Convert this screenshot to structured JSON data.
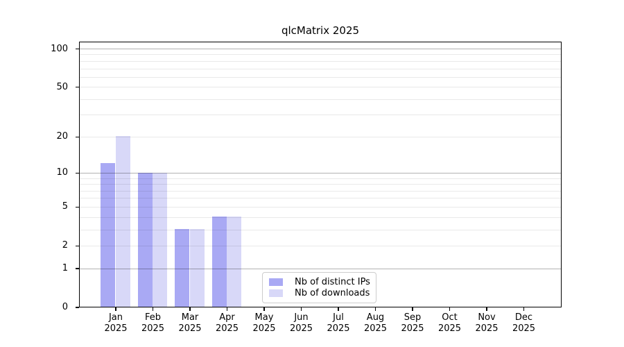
{
  "title": "qlcMatrix 2025",
  "chart_data": {
    "type": "bar",
    "title": "qlcMatrix 2025",
    "categories": [
      "Jan",
      "Feb",
      "Mar",
      "Apr",
      "May",
      "Jun",
      "Jul",
      "Aug",
      "Sep",
      "Oct",
      "Nov",
      "Dec"
    ],
    "category_year": "2025",
    "series": [
      {
        "name": "Nb of distinct IPs",
        "color": "#a9a9f4",
        "values": [
          12,
          10,
          3,
          4,
          0,
          0,
          0,
          0,
          0,
          0,
          0,
          0
        ]
      },
      {
        "name": "Nb of downloads",
        "color": "#d8d8f8",
        "values": [
          20,
          10,
          3,
          4,
          0,
          0,
          0,
          0,
          0,
          0,
          0,
          0
        ]
      }
    ],
    "y_axis": {
      "scale": "log1p",
      "labeled_ticks": [
        0,
        1,
        2,
        5,
        10,
        20,
        50,
        100
      ],
      "major_gridlines": [
        1,
        10,
        100
      ],
      "minor_gridlines": [
        2,
        3,
        4,
        5,
        6,
        7,
        8,
        9,
        20,
        30,
        40,
        50,
        60,
        70,
        80,
        90
      ],
      "ylim": [
        0,
        115
      ]
    },
    "xlabel": "",
    "ylabel": "",
    "grid": true,
    "legend_position": "lower center"
  },
  "colors": {
    "bar_distinct_ips": "#a9a9f4",
    "bar_downloads": "#d8d8f8",
    "grid_major": "#b3b3b3",
    "grid_minor": "#ebebeb",
    "axis": "#000000",
    "background": "#ffffff"
  }
}
